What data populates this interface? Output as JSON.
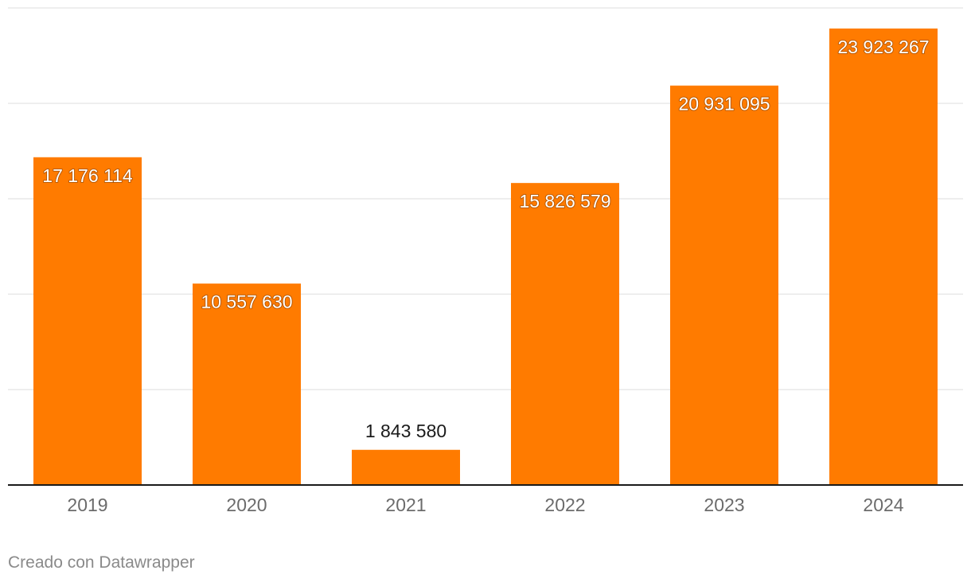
{
  "chart_data": {
    "type": "bar",
    "categories": [
      "2019",
      "2020",
      "2021",
      "2022",
      "2023",
      "2024"
    ],
    "values": [
      17176114,
      10557630,
      1843580,
      15826579,
      20931095,
      23923267
    ],
    "value_labels": [
      "17 176 114",
      "10 557 630",
      "1 843 580",
      "15 826 579",
      "20 931 095",
      "23 923 267"
    ],
    "title": "",
    "xlabel": "",
    "ylabel": "",
    "ylim": [
      0,
      25000000
    ],
    "gridlines": [
      0,
      5000000,
      10000000,
      15000000,
      20000000,
      25000000
    ],
    "grid": true,
    "legend": "none",
    "bar_color": "#ff7b00",
    "credit": "Creado con Datawrapper"
  }
}
